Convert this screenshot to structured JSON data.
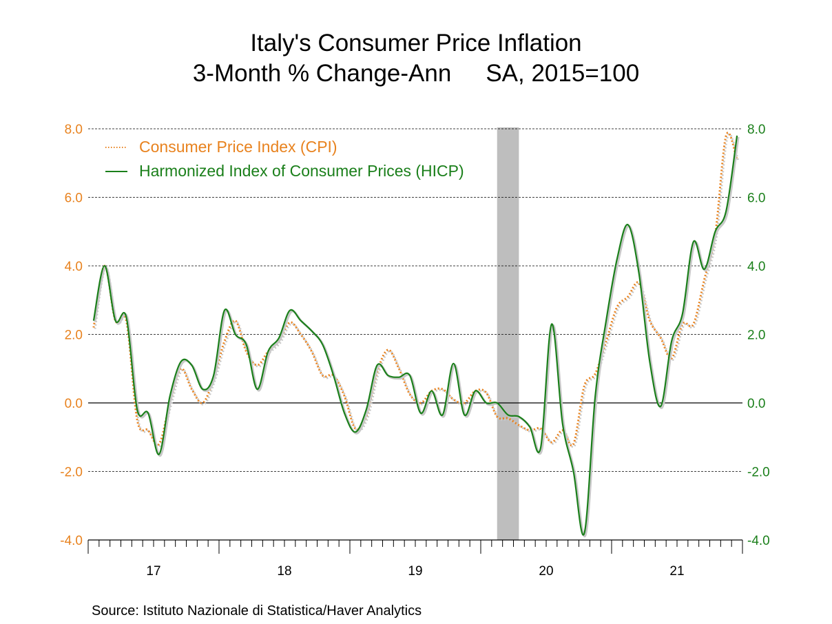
{
  "chart_data": {
    "type": "line",
    "title": "Italy's Consumer Price Inflation",
    "subtitle_left": "3-Month % Change-Ann",
    "subtitle_right": "SA, 2015=100",
    "source": "Source:  Istituto Nazionale di Statistica/Haver Analytics",
    "x_start": "2017-01",
    "x_frequency": "monthly",
    "x_tick_labels": [
      "17",
      "18",
      "19",
      "20",
      "21"
    ],
    "ylim": [
      -4.0,
      8.0
    ],
    "y_ticks_left": [
      "8.0",
      "6.0",
      "4.0",
      "2.0",
      "0.0",
      "-2.0",
      "-4.0"
    ],
    "y_ticks_right": [
      "8.0",
      "6.0",
      "4.0",
      "2.0",
      "0.0",
      "-2.0",
      "-4.0"
    ],
    "grid": "horizontal dashed",
    "legend_position": "top-left",
    "shaded_period": [
      "2020-02",
      "2020-04"
    ],
    "shade_color": "#BEBEBE",
    "series": [
      {
        "name": "Consumer Price Index (CPI)",
        "style": "dotted",
        "color": "#E8821E",
        "values": [
          2.2,
          4.0,
          2.4,
          2.4,
          -0.5,
          -0.8,
          -1.2,
          0.0,
          1.0,
          0.4,
          0.0,
          0.7,
          1.8,
          2.4,
          1.5,
          1.1,
          1.5,
          1.8,
          2.35,
          2.0,
          1.5,
          0.8,
          0.8,
          0.2,
          -0.75,
          -0.4,
          0.9,
          1.55,
          1.0,
          0.25,
          0.0,
          0.35,
          0.4,
          0.1,
          0.0,
          0.35,
          0.3,
          -0.4,
          -0.45,
          -0.65,
          -0.8,
          -0.75,
          -1.15,
          -0.8,
          -1.2,
          0.5,
          0.85,
          1.8,
          2.8,
          3.1,
          3.5,
          2.4,
          1.9,
          1.3,
          2.3,
          2.3,
          3.6,
          4.9,
          7.8,
          7.1
        ]
      },
      {
        "name": "Harmonized Index of Consumer Prices (HICP)",
        "style": "solid",
        "color": "#1A7F1A",
        "values": [
          2.4,
          4.0,
          2.4,
          2.5,
          -0.2,
          -0.3,
          -1.5,
          0.2,
          1.2,
          1.1,
          0.4,
          0.8,
          2.7,
          2.0,
          1.7,
          0.4,
          1.5,
          1.9,
          2.7,
          2.4,
          2.1,
          1.7,
          0.8,
          -0.3,
          -0.85,
          -0.2,
          1.1,
          0.8,
          0.75,
          0.8,
          -0.3,
          0.35,
          -0.35,
          1.15,
          -0.35,
          0.35,
          0.0,
          0.0,
          -0.35,
          -0.4,
          -0.7,
          -1.3,
          2.3,
          -0.6,
          -2.0,
          -3.8,
          0.2,
          2.4,
          4.2,
          5.2,
          3.8,
          1.2,
          -0.1,
          1.8,
          2.6,
          4.7,
          3.9,
          5.0,
          5.6,
          7.8
        ]
      }
    ]
  }
}
